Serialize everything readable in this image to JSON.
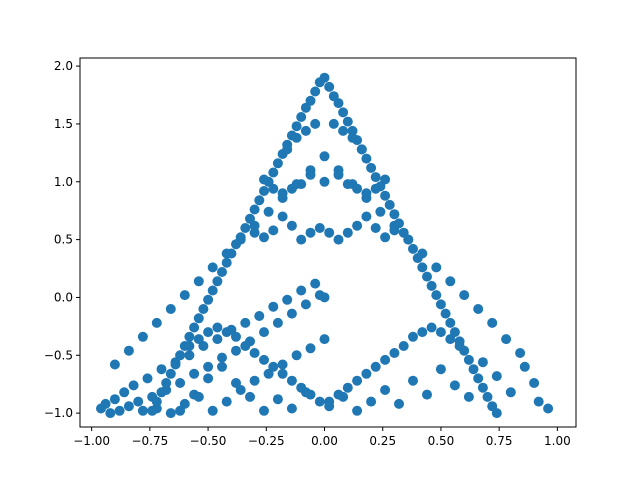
{
  "chart_data": {
    "type": "scatter",
    "title": "",
    "xlabel": "",
    "ylabel": "",
    "xlim": [
      -1.05,
      1.08
    ],
    "ylim": [
      -1.12,
      2.07
    ],
    "xticks": [
      "−1.00",
      "−0.75",
      "−0.50",
      "−0.25",
      "0.00",
      "0.25",
      "0.50",
      "0.75",
      "1.00"
    ],
    "xtick_values": [
      -1.0,
      -0.75,
      -0.5,
      -0.25,
      0.0,
      0.25,
      0.5,
      0.75,
      1.0
    ],
    "yticks": [
      "−1.0",
      "−0.5",
      "0.0",
      "0.5",
      "1.0",
      "1.5",
      "2.0"
    ],
    "ytick_values": [
      -1.0,
      -0.5,
      0.0,
      0.5,
      1.0,
      1.5,
      2.0
    ],
    "grid": false,
    "legend": "none",
    "marker_color": "#1f77b4",
    "series": [
      {
        "points": "0 0, 0 1, -0.96 -0.96, -0.94 -0.92, -0.92 -1, -0.9 -0.88, -0.88 -0.98, -0.86 -0.82, -0.84 -0.94, -0.82 -0.76, -0.8 -0.9, -0.78 -0.98, -0.76 -0.7, -0.74 -0.86, -0.72 -0.96, -0.7 -0.62, -0.68 -0.8, -0.66 -1, -0.64 -0.56, -0.62 -0.74, -0.6 -0.92, -0.58 -0.5, -0.56 -0.66, -0.54 -0.86, -0.52 -0.42, -0.5 -0.6, -0.48 -0.98, -0.46 -0.36, -0.44 -0.52, -0.42 -0.9, -0.4 -0.28, -0.38 -0.46, -0.36 -0.8, -0.34 -0.22, -0.32 -0.38, -0.3 -0.72, -0.28 -0.16, -0.26 -0.3, -0.24 -0.66, -0.22 -0.08, -0.2 -0.22, -0.18 -0.58, -0.16 -0.02, -0.14 -0.14, -0.12 -0.5, -0.1 0.06, -0.08 -0.06, -0.06 -0.44, -0.04 0.12, -0.02 0.02, 0 -0.36, -0.62 -0.98, -0.56 -0.84, -0.5 -0.7, -0.44 -0.6, -0.38 -0.74, -0.32 -0.86, -0.26 -0.98, -0.2 -0.88, -0.14 -0.96, -0.08 -0.82, 0.02 -0.94, 0.08 -0.86, 0.14 -0.98, 0.2 -0.9, 0.26 -0.8, 0.32 -0.92, 0.38 -0.72, 0.44 -0.84, 0.5 -0.62, 0.56 -0.76, 0.62 -0.86, 0.68 -0.56, 0.74 -0.68, 0.8 -0.82, 0.86 -0.6, 0.92 -0.9, 0.96 -0.96, 0.9 -0.74, 0.84 -0.48, 0.78 -0.36, 0.72 -0.22, 0.66 -0.1, 0.6 0.02, 0.54 0.14, 0.48 0.26, 0.42 0.38, 0.36 0.5, 0.3 0.62, 0.24 0.74, 0.18 0.86, 0.12 0.98, 0.06 1.1, 0 1.22, -0.06 1.1, -0.12 0.98, -0.18 0.86, -0.24 0.74, -0.3 0.62, -0.36 0.5, -0.42 0.38, -0.48 0.26, -0.54 0.14, -0.6 0.02, -0.66 -0.1, -0.72 -0.22, -0.78 -0.34, -0.84 -0.46, -0.9 -0.58, 0 1.9, -0.02 1.86, 0.02 1.82, -0.04 1.78, 0.04 1.74, -0.06 1.7, 0.06 1.68, -0.08 1.64, 0.08 1.6, -0.1 1.56, 0.1 1.52, -0.12 1.48, 0.12 1.44, -0.14 1.4, 0.14 1.36, -0.16 1.32, 0.16 1.28, -0.18 1.24, 0.18 1.2, -0.2 1.16, 0.2 1.12, -0.22 1.08, 0.22 1.04, -0.24 1, 0.24 0.96, -0.26 0.92, 0.26 0.88, -0.28 0.84, 0.28 0.8, -0.3 0.76, 0.3 0.72, -0.32 0.68, 0.32 0.64, -0.34 0.6, 0.34 0.56, -0.36 0.52, 0.36 0.5, -0.38 0.46, 0.38 0.42, -0.4 0.38, 0.4 0.34, -0.42 0.3, 0.42 0.26, -0.44 0.22, 0.44 0.18, -0.46 0.14, 0.46 0.1, -0.48 0.06, 0.48 0.02, -0.5 -0.02, 0.5 -0.06, -0.52 -0.1, 0.52 -0.14, -0.54 -0.18, 0.54 -0.22, -0.56 -0.26, 0.56 -0.3, -0.58 -0.34, 0.58 -0.38, -0.6 -0.42, 0.6 -0.46, -0.62 -0.5, 0.62 -0.54, -0.64 -0.58, 0.64 -0.62, -0.66 -0.66, 0.66 -0.7, -0.68 -0.74, 0.68 -0.78, -0.7 -0.82, 0.7 -0.86, -0.72 -0.9, 0.72 -0.94, -0.74 -0.98, 0.74 -1, -0.1 0.5, -0.06 0.56, -0.02 0.6, 0.02 0.56, 0.06 0.5, 0.1 0.56, 0.14 0.62, 0.18 0.7, 0.22 0.6, 0.26 0.52, 0.3 0.58, -0.14 0.62, -0.18 0.7, -0.22 0.58, -0.26 0.52, -0.3 0.56, -0.18 0.9, -0.14 0.94, -0.1 0.98, -0.06 1.06, 0.06 1.06, 0.1 0.98, 0.14 0.94, 0.18 0.9, 0.22 0.94, 0.26 1.02, -0.22 0.94, -0.26 1.02, -0.08 1.44, -0.04 1.5, 0.04 1.5, 0.08 1.44, 0.12 1.38, 0.16 1.28, -0.12 1.38, -0.16 1.28, 0.46 -0.26, 0.5 -0.3, 0.54 -0.36, 0.58 -0.42, 0.42 -0.3, 0.38 -0.34, 0.34 -0.42, 0.3 -0.48, 0.26 -0.54, 0.22 -0.6, 0.18 -0.66, 0.14 -0.72, 0.1 -0.78, 0.06 -0.84, 0.02 -0.9, -0.46 -0.26, -0.5 -0.3, -0.54 -0.36, -0.58 -0.42, -0.42 -0.3, -0.38 -0.34, -0.34 -0.42, -0.3 -0.48, -0.26 -0.54, -0.22 -0.6, -0.18 -0.66, -0.14 -0.72, -0.1 -0.78, -0.06 -0.84, -0.02 -0.9"
      }
    ]
  }
}
